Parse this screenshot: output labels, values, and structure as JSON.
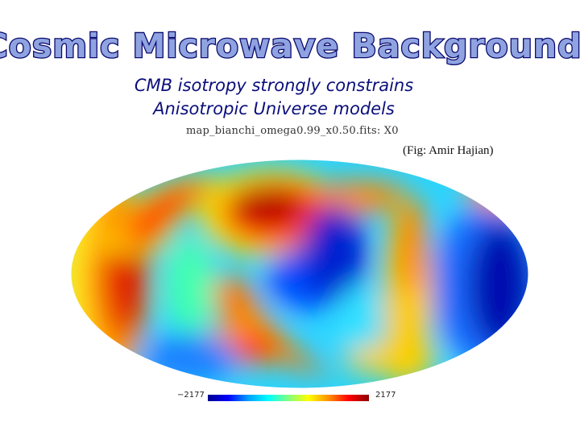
{
  "slide": {
    "title": "Cosmic Microwave  Background",
    "subtitle_line1": "CMB isotropy strongly constrains",
    "subtitle_line2": "Anisotropic Universe models",
    "map_label": "map_bianchi_omega0.99_x0.50.fits: X0",
    "credit": "(Fig: Amir  Hajian)"
  },
  "colorbar": {
    "min_label": "−2177",
    "max_label": "2177",
    "colormap": "jet"
  },
  "colors": {
    "title_fill": "#8fa3e0",
    "title_stroke": "#0a0a6e",
    "subtitle": "#0b0f7a"
  }
}
